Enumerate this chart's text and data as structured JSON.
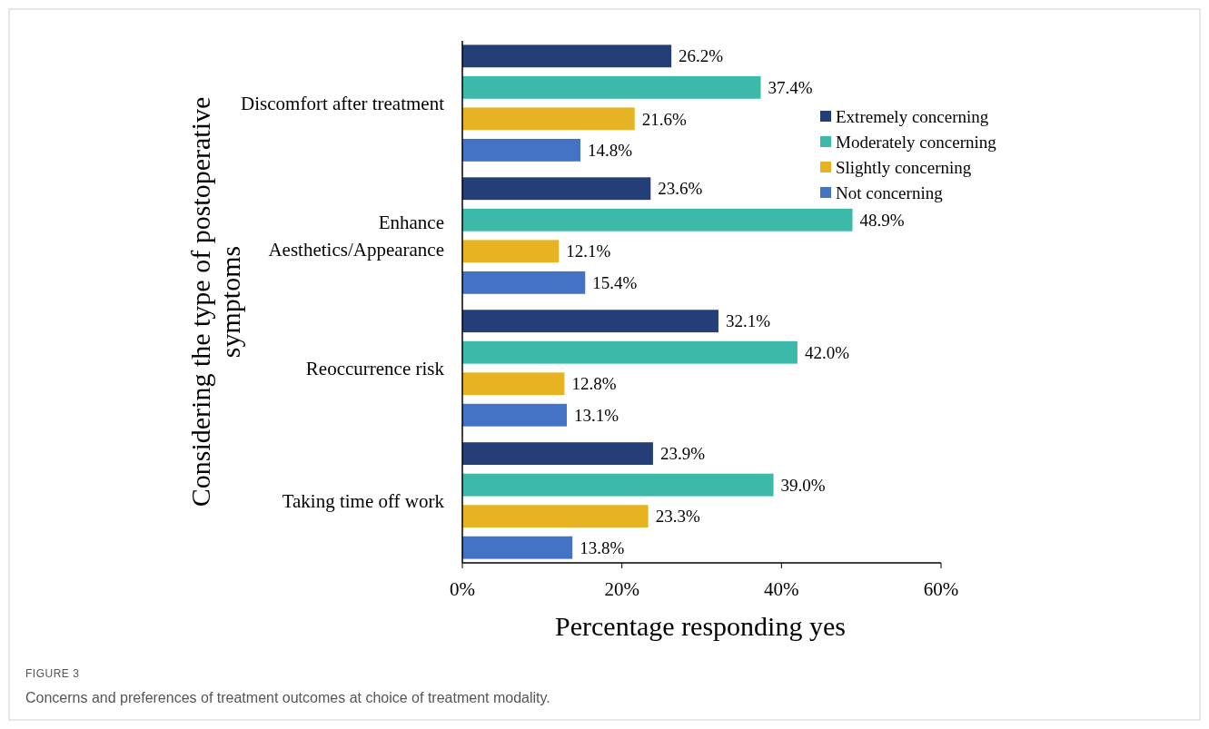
{
  "chart_data": {
    "type": "bar",
    "orientation": "horizontal",
    "xlabel": "Percentage responding yes",
    "ylabel": "Considering the type of postoperative symptoms",
    "categories": [
      "Discomfort after treatment",
      "Enhance Aesthetics/Appearance",
      "Reoccurrence risk",
      "Taking time off work"
    ],
    "series": [
      {
        "name": "Extremely concerning",
        "color": "#243f78",
        "values": [
          26.2,
          23.6,
          32.1,
          23.9
        ],
        "value_labels": [
          "26.2%",
          "23.6%",
          "32.1%",
          "23.9%"
        ]
      },
      {
        "name": "Moderately concerning",
        "color": "#3cb9a9",
        "values": [
          37.4,
          48.9,
          42.0,
          39.0
        ],
        "value_labels": [
          "37.4%",
          "48.9%",
          "42.0%",
          "39.0%"
        ]
      },
      {
        "name": "Slightly concerning",
        "color": "#e6b422",
        "values": [
          21.6,
          12.1,
          12.8,
          23.3
        ],
        "value_labels": [
          "21.6%",
          "12.1%",
          "12.8%",
          "23.3%"
        ]
      },
      {
        "name": "Not concerning",
        "color": "#4472c4",
        "values": [
          14.8,
          15.4,
          13.1,
          13.8
        ],
        "value_labels": [
          "14.8%",
          "15.4%",
          "13.1%",
          "13.8%"
        ]
      }
    ],
    "xlim": [
      0,
      60
    ],
    "xticks": [
      {
        "value": 0,
        "label": "0%"
      },
      {
        "value": 20,
        "label": "20%"
      },
      {
        "value": 40,
        "label": "40%"
      },
      {
        "value": 60,
        "label": "60%"
      }
    ],
    "grid": false,
    "legend": "top right",
    "annotations": [
      "FIGURE 3",
      "Concerns and preferences of treatment outcomes at choice of treatment modality."
    ]
  }
}
